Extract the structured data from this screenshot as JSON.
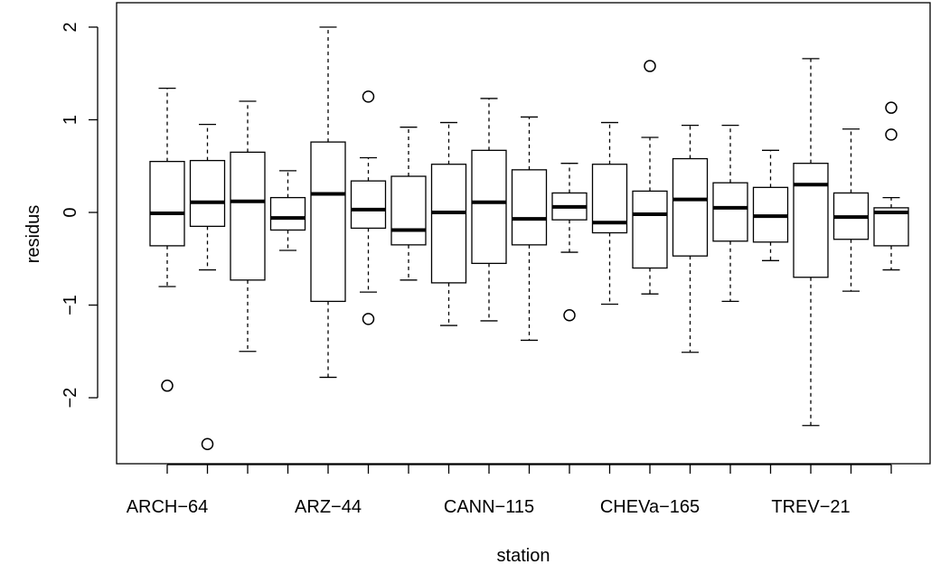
{
  "chart_data": {
    "type": "boxplot",
    "xlabel": "station",
    "ylabel": "residus",
    "ylim": [
      -2.7,
      2.1
    ],
    "yticks": [
      -2,
      -1,
      0,
      1,
      2
    ],
    "yticklabels": [
      "−2",
      "−1",
      "0",
      "1",
      "2"
    ],
    "xticklabels": [
      {
        "position": 1,
        "label": "ARCH−64"
      },
      {
        "position": 5,
        "label": "ARZ−44"
      },
      {
        "position": 9,
        "label": "CANN−115"
      },
      {
        "position": 13,
        "label": "CHEVa−165"
      },
      {
        "position": 17,
        "label": "TREV−21"
      }
    ],
    "grid": false,
    "boxes": [
      {
        "q1": -0.36,
        "median": -0.01,
        "q3": 0.55,
        "low": -0.8,
        "high": 1.34,
        "outliers": [
          -1.87
        ]
      },
      {
        "q1": -0.15,
        "median": 0.11,
        "q3": 0.56,
        "low": -0.62,
        "high": 0.95,
        "outliers": [
          -2.5
        ]
      },
      {
        "q1": -0.73,
        "median": 0.12,
        "q3": 0.65,
        "low": -1.5,
        "high": 1.2,
        "outliers": []
      },
      {
        "q1": -0.19,
        "median": -0.06,
        "q3": 0.16,
        "low": -0.41,
        "high": 0.45,
        "outliers": []
      },
      {
        "q1": -0.96,
        "median": 0.2,
        "q3": 0.76,
        "low": -1.78,
        "high": 2.0,
        "outliers": []
      },
      {
        "q1": -0.17,
        "median": 0.03,
        "q3": 0.34,
        "low": -0.86,
        "high": 0.59,
        "outliers": [
          1.25,
          -1.15
        ]
      },
      {
        "q1": -0.35,
        "median": -0.19,
        "q3": 0.39,
        "low": -0.73,
        "high": 0.92,
        "outliers": []
      },
      {
        "q1": -0.76,
        "median": 0.0,
        "q3": 0.52,
        "low": -1.22,
        "high": 0.97,
        "outliers": []
      },
      {
        "q1": -0.55,
        "median": 0.11,
        "q3": 0.67,
        "low": -1.17,
        "high": 1.23,
        "outliers": []
      },
      {
        "q1": -0.35,
        "median": -0.07,
        "q3": 0.46,
        "low": -1.38,
        "high": 1.03,
        "outliers": []
      },
      {
        "q1": -0.08,
        "median": 0.06,
        "q3": 0.21,
        "low": -0.43,
        "high": 0.53,
        "outliers": [
          -1.11
        ]
      },
      {
        "q1": -0.22,
        "median": -0.11,
        "q3": 0.52,
        "low": -0.99,
        "high": 0.97,
        "outliers": []
      },
      {
        "q1": -0.6,
        "median": -0.02,
        "q3": 0.23,
        "low": -0.88,
        "high": 0.81,
        "outliers": [
          1.58
        ]
      },
      {
        "q1": -0.47,
        "median": 0.14,
        "q3": 0.58,
        "low": -1.51,
        "high": 0.94,
        "outliers": []
      },
      {
        "q1": -0.31,
        "median": 0.05,
        "q3": 0.32,
        "low": -0.96,
        "high": 0.94,
        "outliers": []
      },
      {
        "q1": -0.32,
        "median": -0.04,
        "q3": 0.27,
        "low": -0.52,
        "high": 0.67,
        "outliers": []
      },
      {
        "q1": -0.7,
        "median": 0.3,
        "q3": 0.53,
        "low": -2.3,
        "high": 1.66,
        "outliers": []
      },
      {
        "q1": -0.29,
        "median": -0.05,
        "q3": 0.21,
        "low": -0.85,
        "high": 0.9,
        "outliers": []
      },
      {
        "q1": -0.36,
        "median": 0.0,
        "q3": 0.05,
        "low": -0.62,
        "high": 0.16,
        "outliers": [
          1.13,
          0.84
        ]
      }
    ]
  }
}
